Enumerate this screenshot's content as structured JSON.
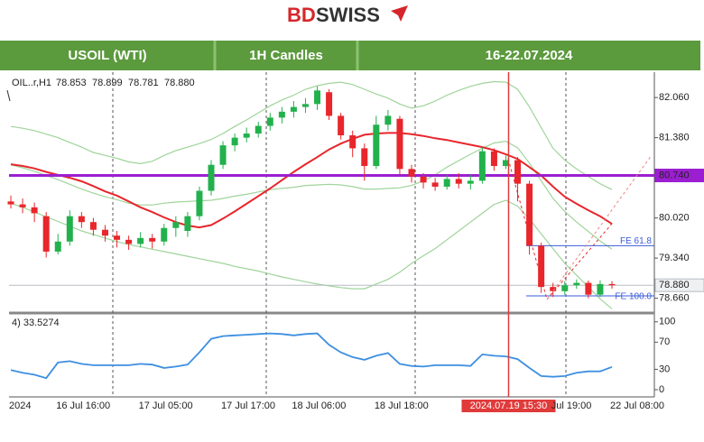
{
  "logo": [
    "BD",
    "SWISS"
  ],
  "header": {
    "cells": [
      "USOIL (WTI)",
      "1H Candles",
      "16-22.07.2024"
    ]
  },
  "chart_data": [
    {
      "type": "candlestick",
      "symbol_label": "OIL..r,H1",
      "ohlc_label": [
        {
          "value": 78.853,
          "label": "78.853"
        },
        {
          "value": 78.899,
          "label": "78.899"
        },
        {
          "value": 78.781,
          "label": "78.781"
        },
        {
          "value": 78.88,
          "label": "78.880"
        }
      ],
      "categories": [
        "2024",
        null,
        null,
        null,
        "16 Jul 16:00",
        null,
        null,
        null,
        null,
        null,
        null,
        "17 Jul 05:00",
        null,
        null,
        null,
        null,
        null,
        null,
        "17 Jul 17:00",
        null,
        null,
        null,
        null,
        null,
        "18 Jul 06:00",
        null,
        null,
        null,
        null,
        null,
        null,
        "18 Jul 18:00",
        null,
        null,
        null,
        null,
        null,
        null,
        null,
        null,
        null,
        null,
        "2024.07.19 15:30",
        null,
        null,
        null,
        "Jul 19:00",
        null,
        null,
        null,
        null,
        "22 Jul 08:00"
      ],
      "open": [
        80.3,
        80.25,
        80.2,
        80.05,
        79.45,
        79.62,
        80.05,
        79.95,
        79.82,
        79.72,
        79.65,
        79.58,
        79.68,
        79.62,
        79.85,
        79.8,
        80.05,
        80.48,
        80.92,
        81.25,
        81.38,
        81.45,
        81.58,
        81.72,
        81.82,
        81.9,
        81.95,
        82.15,
        81.75,
        81.42,
        81.2,
        80.9,
        81.6,
        81.7,
        80.85,
        80.72,
        80.62,
        80.55,
        80.68,
        80.6,
        80.65,
        81.15,
        80.9,
        81.0,
        80.6,
        79.55,
        78.85,
        78.78,
        78.88,
        78.92,
        78.72,
        78.9
      ],
      "high": [
        80.4,
        80.35,
        80.28,
        80.12,
        79.75,
        80.15,
        80.12,
        80.02,
        79.9,
        79.8,
        79.72,
        79.78,
        79.75,
        79.92,
        80.05,
        80.12,
        80.55,
        81.0,
        81.32,
        81.45,
        81.55,
        81.65,
        81.8,
        81.9,
        82.0,
        82.05,
        82.25,
        82.2,
        81.8,
        81.5,
        81.28,
        81.75,
        81.85,
        81.75,
        80.92,
        80.78,
        80.7,
        80.75,
        80.78,
        80.75,
        81.22,
        81.2,
        81.08,
        81.05,
        80.65,
        79.6,
        78.92,
        78.95,
        78.98,
        78.96,
        78.96,
        78.95
      ],
      "low": [
        80.18,
        80.1,
        79.95,
        79.35,
        79.4,
        79.55,
        79.85,
        79.72,
        79.62,
        79.52,
        79.48,
        79.52,
        79.5,
        79.55,
        79.7,
        79.7,
        79.98,
        80.4,
        80.85,
        81.15,
        81.3,
        81.38,
        81.5,
        81.62,
        81.72,
        81.8,
        81.85,
        81.68,
        81.35,
        81.05,
        80.65,
        80.85,
        81.5,
        80.75,
        80.62,
        80.52,
        80.48,
        80.5,
        80.52,
        80.5,
        80.6,
        80.82,
        80.85,
        80.3,
        79.4,
        78.75,
        78.68,
        78.72,
        78.82,
        78.66,
        78.68,
        78.82
      ],
      "close": [
        80.25,
        80.2,
        80.1,
        79.45,
        79.62,
        80.05,
        79.95,
        79.82,
        79.72,
        79.65,
        79.58,
        79.68,
        79.62,
        79.85,
        79.95,
        80.05,
        80.48,
        80.92,
        81.25,
        81.38,
        81.45,
        81.58,
        81.72,
        81.82,
        81.9,
        81.95,
        82.18,
        81.75,
        81.42,
        81.2,
        80.9,
        81.6,
        81.75,
        80.85,
        80.72,
        80.62,
        80.55,
        80.68,
        80.6,
        80.65,
        81.15,
        80.9,
        81.0,
        80.6,
        79.55,
        78.85,
        78.78,
        78.88,
        78.92,
        78.72,
        78.9,
        78.88
      ],
      "up_color": "#22b14c",
      "down_color": "#e8262b",
      "series": [
        {
          "color": "#9fd49a",
          "values": [
            81.57,
            81.54,
            81.5,
            81.44,
            81.38,
            81.3,
            81.22,
            81.13,
            81.08,
            81.03,
            80.97,
            80.94,
            80.98,
            81.08,
            81.16,
            81.22,
            81.28,
            81.35,
            81.45,
            81.57,
            81.68,
            81.8,
            81.92,
            82.02,
            82.1,
            82.2,
            82.26,
            82.3,
            82.32,
            82.28,
            82.2,
            82.12,
            82.05,
            81.95,
            81.88,
            81.92,
            82.0,
            82.1,
            82.18,
            82.25,
            82.3,
            82.33,
            82.32,
            82.2,
            81.9,
            81.55,
            81.2,
            81.0,
            80.85,
            80.72,
            80.6,
            80.5
          ]
        },
        {
          "color": "#9fd49a",
          "values": [
            80.92,
            80.87,
            80.81,
            80.74,
            80.67,
            80.59,
            80.51,
            80.44,
            80.38,
            80.33,
            80.27,
            80.24,
            80.24,
            80.27,
            80.29,
            80.3,
            80.31,
            80.32,
            80.35,
            80.39,
            80.42,
            80.46,
            80.5,
            80.52,
            80.54,
            80.57,
            80.58,
            80.59,
            80.58,
            80.55,
            80.51,
            80.51,
            80.52,
            80.53,
            80.57,
            80.65,
            80.75,
            80.88,
            80.99,
            81.1,
            81.2,
            81.29,
            81.32,
            81.21,
            80.95,
            80.65,
            80.35,
            80.13,
            79.95,
            79.79,
            79.63,
            79.49
          ]
        },
        {
          "color": "#9fd49a",
          "values": [
            80.27,
            80.2,
            80.12,
            80.04,
            79.96,
            79.88,
            79.8,
            79.74,
            79.68,
            79.62,
            79.57,
            79.53,
            79.49,
            79.45,
            79.41,
            79.37,
            79.33,
            79.29,
            79.25,
            79.2,
            79.16,
            79.12,
            79.07,
            79.02,
            78.98,
            78.94,
            78.9,
            78.87,
            78.84,
            78.82,
            78.82,
            78.9,
            78.98,
            79.1,
            79.25,
            79.38,
            79.5,
            79.65,
            79.8,
            79.95,
            80.1,
            80.25,
            80.32,
            80.22,
            80.0,
            79.75,
            79.5,
            79.25,
            79.05,
            78.85,
            78.65,
            78.48
          ]
        },
        {
          "color": "#e8262b",
          "values": [
            80.93,
            80.9,
            80.86,
            80.8,
            80.75,
            80.7,
            80.64,
            80.56,
            80.47,
            80.4,
            80.3,
            80.2,
            80.12,
            80.03,
            79.95,
            79.89,
            79.86,
            79.9,
            80.01,
            80.13,
            80.26,
            80.39,
            80.52,
            80.66,
            80.8,
            80.93,
            81.05,
            81.18,
            81.28,
            81.36,
            81.43,
            81.45,
            81.46,
            81.46,
            81.44,
            81.41,
            81.37,
            81.34,
            81.3,
            81.26,
            81.22,
            81.17,
            81.1,
            81.02,
            80.88,
            80.74,
            80.55,
            80.38,
            80.26,
            80.15,
            80.05,
            79.92
          ]
        }
      ],
      "levels": [
        {
          "value": 80.74,
          "label": "80.740",
          "color": "#9b1fd1"
        },
        {
          "value": 78.88,
          "label": "78.880",
          "color": "#b8bcc2"
        },
        {
          "value": 79.55,
          "label": "FE 61.8",
          "color": "#3b5bdb"
        },
        {
          "value": 78.7,
          "label": "FE 100.0",
          "color": "#3b5bdb"
        }
      ],
      "ylim": [
        78.44,
        82.49
      ],
      "yticks": [
        {
          "value": 82.06,
          "label": "82.060"
        },
        {
          "value": 81.38,
          "label": "81.380"
        },
        {
          "value": 80.02,
          "label": "80.020"
        },
        {
          "value": 79.34,
          "label": "79.340"
        },
        {
          "value": 78.66,
          "label": "78.660"
        }
      ]
    },
    {
      "type": "line",
      "label": "4) 33.5274",
      "color": "#3d8fe0",
      "values": [
        29,
        25,
        22,
        17,
        40,
        42,
        38,
        36,
        36,
        36,
        36,
        38,
        37,
        32,
        34,
        37,
        55,
        75,
        79,
        80,
        81,
        82,
        83,
        82,
        80,
        82,
        83,
        66,
        55,
        48,
        44,
        50,
        54,
        38,
        35,
        34,
        36,
        36,
        36,
        35,
        52,
        50,
        49,
        45,
        32,
        20,
        19,
        20,
        25,
        27,
        27,
        33.5274
      ],
      "ylim": [
        -8,
        109
      ],
      "yticks": [
        100,
        70,
        30,
        0
      ]
    }
  ]
}
